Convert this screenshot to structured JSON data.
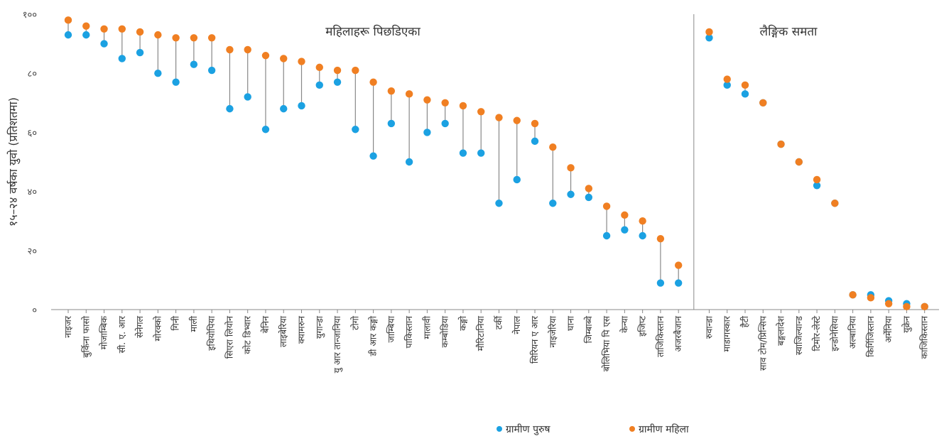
{
  "chart_data": {
    "type": "scatter",
    "ylabel": "१५–२४ वर्षका युवो (प्रतिशतमा)",
    "ylim": [
      0,
      100
    ],
    "yticks": [
      0,
      20,
      40,
      60,
      80,
      100
    ],
    "ytick_labels": [
      "०",
      "२०",
      "४०",
      "६०",
      "८०",
      "१००"
    ],
    "groups": [
      "महिलाहरू पिछडिएका",
      "लैङ्गिक समता"
    ],
    "colors": {
      "rural_male": "#1ba1e2",
      "rural_female": "#f07f22",
      "connector": "#888888"
    },
    "series": [
      {
        "name": "ग्रामीण पुरुष",
        "color": "#1ba1e2"
      },
      {
        "name": "ग्रामीण महिला",
        "color": "#f07f22"
      }
    ],
    "categories": [
      {
        "label": "नाइजर",
        "male": 93,
        "female": 98,
        "group": 0
      },
      {
        "label": "बुर्किना फासो",
        "male": 93,
        "female": 96,
        "group": 0
      },
      {
        "label": "मोजाम्बिक",
        "male": 90,
        "female": 95,
        "group": 0
      },
      {
        "label": "सी. ए. आर",
        "male": 85,
        "female": 95,
        "group": 0
      },
      {
        "label": "सेनेगल",
        "male": 87,
        "female": 94,
        "group": 0
      },
      {
        "label": "मोरक्को",
        "male": 80,
        "female": 93,
        "group": 0
      },
      {
        "label": "गिनी",
        "male": 77,
        "female": 92,
        "group": 0
      },
      {
        "label": "माली",
        "male": 83,
        "female": 92,
        "group": 0
      },
      {
        "label": "इथियोपिया",
        "male": 81,
        "female": 92,
        "group": 0
      },
      {
        "label": "सिएरा लियोन",
        "male": 68,
        "female": 88,
        "group": 0
      },
      {
        "label": "कोट डिभ्वार",
        "male": 72,
        "female": 88,
        "group": 0
      },
      {
        "label": "बेनिन",
        "male": 61,
        "female": 86,
        "group": 0
      },
      {
        "label": "लाइबेरिया",
        "male": 68,
        "female": 85,
        "group": 0
      },
      {
        "label": "क्यामरुन",
        "male": 69,
        "female": 84,
        "group": 0
      },
      {
        "label": "युगान्डा",
        "male": 76,
        "female": 82,
        "group": 0
      },
      {
        "label": "यु आर तान्जानिया",
        "male": 77,
        "female": 81,
        "group": 0
      },
      {
        "label": "टोगो",
        "male": 61,
        "female": 81,
        "group": 0
      },
      {
        "label": "डी आर कङ्गो",
        "male": 52,
        "female": 77,
        "group": 0
      },
      {
        "label": "जाम्बिया",
        "male": 63,
        "female": 74,
        "group": 0
      },
      {
        "label": "पाकिस्तान",
        "male": 50,
        "female": 73,
        "group": 0
      },
      {
        "label": "मालावी",
        "male": 60,
        "female": 71,
        "group": 0
      },
      {
        "label": "कम्बोडिया",
        "male": 63,
        "female": 70,
        "group": 0
      },
      {
        "label": "कङ्गो",
        "male": 53,
        "female": 69,
        "group": 0
      },
      {
        "label": "मौरिटानिया",
        "male": 53,
        "female": 67,
        "group": 0
      },
      {
        "label": "टर्की",
        "male": 36,
        "female": 65,
        "group": 0
      },
      {
        "label": "नेपाल",
        "male": 44,
        "female": 64,
        "group": 0
      },
      {
        "label": "सिरियन ए आर",
        "male": 57,
        "female": 63,
        "group": 0
      },
      {
        "label": "नाइजेरिया",
        "male": 36,
        "female": 55,
        "group": 0
      },
      {
        "label": "घाना",
        "male": 39,
        "female": 48,
        "group": 0
      },
      {
        "label": "जिम्बाब्वे",
        "male": 38,
        "female": 41,
        "group": 0
      },
      {
        "label": "बोलिभिया पि एस",
        "male": 25,
        "female": 35,
        "group": 0
      },
      {
        "label": "केन्या",
        "male": 27,
        "female": 32,
        "group": 0
      },
      {
        "label": "इजिप्ट",
        "male": 25,
        "female": 30,
        "group": 0
      },
      {
        "label": "ताजिकिस्तान",
        "male": 9,
        "female": 24,
        "group": 0
      },
      {
        "label": "अजरबैजान",
        "male": 9,
        "female": 15,
        "group": 0
      },
      {
        "label": "रुवान्डा",
        "male": 92,
        "female": 94,
        "group": 1
      },
      {
        "label": "माडागस्कार",
        "male": 76,
        "female": 78,
        "group": 1
      },
      {
        "label": "हैटी",
        "male": 73,
        "female": 76,
        "group": 1
      },
      {
        "label": "साव टोम/प्रिन्सिप",
        "male": 70,
        "female": 70,
        "group": 1
      },
      {
        "label": "बङ्गलादेश",
        "male": 56,
        "female": 56,
        "group": 1
      },
      {
        "label": "स्वाजिल्यान्ड",
        "male": 50,
        "female": 50,
        "group": 1
      },
      {
        "label": "टिमोर-लेस्टे",
        "male": 42,
        "female": 44,
        "group": 1
      },
      {
        "label": "इन्डोनेसिया",
        "male": 36,
        "female": 36,
        "group": 1
      },
      {
        "label": "अल्बानिया",
        "male": 5,
        "female": 5,
        "group": 1
      },
      {
        "label": "किर्गिजिस्तान",
        "male": 5,
        "female": 4,
        "group": 1
      },
      {
        "label": "अर्मेनिया",
        "male": 3,
        "female": 2,
        "group": 1
      },
      {
        "label": "युक्रेन",
        "male": 2,
        "female": 1,
        "group": 1
      },
      {
        "label": "काजिकिस्तान",
        "male": 1,
        "female": 1,
        "group": 1
      }
    ]
  }
}
